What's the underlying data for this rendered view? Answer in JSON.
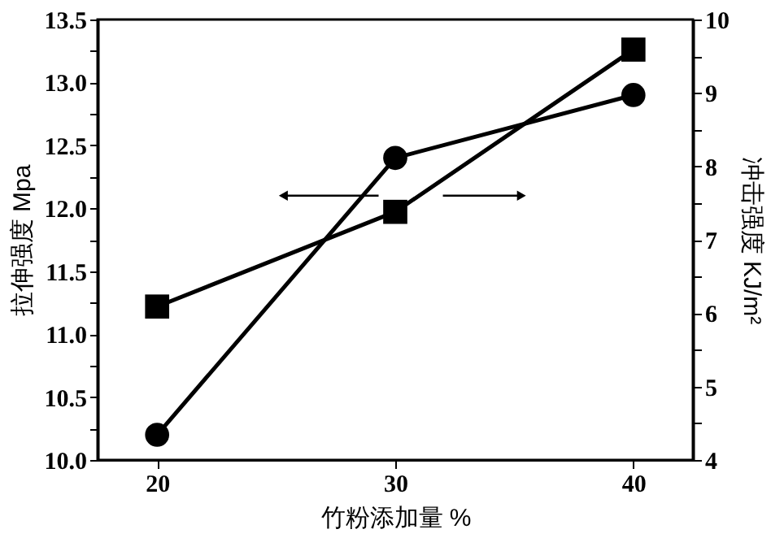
{
  "chart_data": {
    "type": "line",
    "xlabel": "竹粉添加量 %",
    "ylabel": "拉伸强度 Mpa",
    "y2label": "冲击强度 KJ/m²",
    "x": [
      20,
      30,
      40
    ],
    "series": [
      {
        "color": "#000000",
        "marker": "circle",
        "values": [
          10.2,
          12.4,
          12.9
        ]
      },
      {
        "color": "#000000",
        "marker": "square",
        "axis": "y2",
        "values": [
          6.09,
          7.38,
          9.59
        ]
      }
    ],
    "xlim": [
      17.5,
      42.5
    ],
    "xticks": [
      20,
      30,
      40
    ],
    "ylim": [
      10.0,
      13.5
    ],
    "yticks": [
      {
        "value": 10.0,
        "label": "10.0"
      },
      {
        "value": 10.25,
        "label": null
      },
      {
        "value": 10.5,
        "label": "10.5"
      },
      {
        "value": 10.75,
        "label": null
      },
      {
        "value": 11.0,
        "label": "11.0"
      },
      {
        "value": 11.25,
        "label": null
      },
      {
        "value": 11.5,
        "label": "11.5"
      },
      {
        "value": 11.75,
        "label": null
      },
      {
        "value": 12.0,
        "label": "12.0"
      },
      {
        "value": 12.25,
        "label": null
      },
      {
        "value": 12.5,
        "label": "12.5"
      },
      {
        "value": 12.75,
        "label": null
      },
      {
        "value": 13.0,
        "label": "13.0"
      },
      {
        "value": 13.25,
        "label": null
      },
      {
        "value": 13.5,
        "label": "13.5"
      }
    ],
    "y2lim": [
      4,
      10
    ],
    "y2ticks": [
      4,
      {
        "value": 4.5,
        "label": null
      },
      5,
      {
        "value": 5.5,
        "label": null
      },
      6,
      {
        "value": 6.5,
        "label": null
      },
      7,
      {
        "value": 7.5,
        "label": null
      },
      8,
      {
        "value": 8.5,
        "label": null
      },
      9,
      {
        "value": 9.5,
        "label": null
      },
      10
    ],
    "grid": false,
    "line_style": "solid"
  }
}
